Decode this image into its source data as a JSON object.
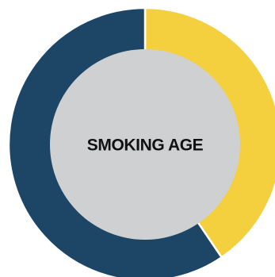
{
  "chart_data": {
    "type": "pie",
    "style": "donut",
    "title": "",
    "center_label": "SMOKING AGE",
    "slices": [
      {
        "value": 40.5,
        "color": "#F4D03F"
      },
      {
        "value": 59.5,
        "color": "#1C4566"
      }
    ],
    "hole_color": "#CFD0D2",
    "separator_color": "#FFFFFF",
    "text_color": "#111111",
    "start_angle_deg": 0,
    "direction": "clockwise"
  }
}
